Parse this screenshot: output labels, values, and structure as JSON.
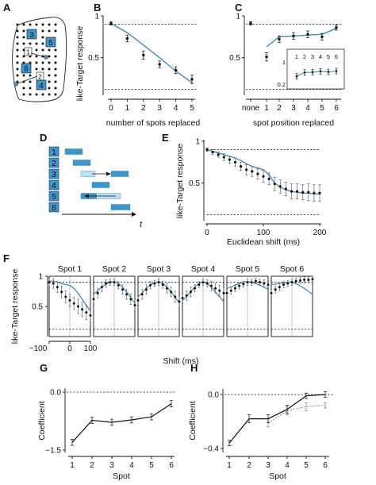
{
  "figure": {
    "panel_labels": [
      "A",
      "B",
      "C",
      "D",
      "E",
      "F",
      "G",
      "H"
    ]
  },
  "colors": {
    "model": "#3b8fc6",
    "data": "#111111",
    "box": "#3a97d0",
    "box_light": "#bfe0f3",
    "gray": "#888888"
  },
  "panelA": {
    "numbers": [
      "3",
      "5",
      "1",
      "6",
      "2",
      "4"
    ],
    "highlighted": [
      "3",
      "5",
      "6",
      "4"
    ]
  },
  "panelD": {
    "rows": [
      "1",
      "2",
      "3",
      "4",
      "5",
      "6"
    ],
    "t_label": "t"
  },
  "chart_data": [
    {
      "panel": "B",
      "type": "line",
      "x": [
        0,
        1,
        2,
        3,
        4,
        5
      ],
      "xticks": [
        "0",
        "1",
        "2",
        "3",
        "4",
        "5"
      ],
      "yticks": [
        "0.5",
        "1"
      ],
      "xlabel": "number of spots replaced",
      "ylabel": "like-Target response",
      "ylim": [
        0.05,
        1.0
      ],
      "reference_lines": [
        0.9,
        0.12
      ],
      "series": [
        {
          "values": [
            0.91,
            0.73,
            0.53,
            0.42,
            0.35,
            0.24
          ],
          "errors": [
            0.02,
            0.04,
            0.05,
            0.04,
            0.04,
            0.05
          ]
        }
      ],
      "model": [
        0.91,
        0.8,
        0.65,
        0.5,
        0.34,
        0.2
      ]
    },
    {
      "panel": "C",
      "type": "line",
      "categories": [
        "none",
        "1",
        "2",
        "3",
        "4",
        "5",
        "6"
      ],
      "xlabel": "spot position replaced",
      "yticks": [
        "0.5",
        "1"
      ],
      "ylim": [
        0.05,
        1.0
      ],
      "reference_lines": [
        0.9,
        0.12
      ],
      "series": [
        {
          "values": [
            0.91,
            0.51,
            0.72,
            0.76,
            0.78,
            0.75,
            0.86
          ],
          "errors": [
            0.02,
            0.05,
            0.04,
            0.04,
            0.04,
            0.04,
            0.03
          ]
        }
      ],
      "model": [
        null,
        0.63,
        0.75,
        0.76,
        0.77,
        0.78,
        0.85
      ],
      "inset": {
        "xticks": [
          "1",
          "2",
          "3",
          "4",
          "5",
          "6"
        ],
        "yticks": [
          "0.2",
          "1"
        ],
        "ylim": [
          0.2,
          1.0
        ],
        "values": [
          0.48,
          0.62,
          0.63,
          0.66,
          0.64,
          0.67
        ],
        "errors": [
          0.1,
          0.1,
          0.1,
          0.1,
          0.1,
          0.1
        ]
      }
    },
    {
      "panel": "E",
      "type": "line",
      "x": [
        0,
        10,
        20,
        30,
        40,
        50,
        60,
        70,
        80,
        90,
        100,
        110,
        120,
        130,
        140,
        150,
        160,
        170,
        180,
        190,
        200
      ],
      "xticks": [
        "0",
        "100",
        "200"
      ],
      "yticks": [
        "0.5",
        "1"
      ],
      "xlabel": "Euclidean shift (ms)",
      "ylabel": "like-Target response",
      "xlim": [
        0,
        200
      ],
      "ylim": [
        0.05,
        1.0
      ],
      "reference_lines": [
        0.9,
        0.12
      ],
      "series": [
        {
          "values": [
            0.9,
            0.87,
            0.84,
            0.81,
            0.78,
            0.75,
            0.7,
            0.66,
            0.64,
            0.61,
            0.58,
            0.55,
            0.49,
            0.46,
            0.43,
            0.4,
            0.4,
            0.39,
            0.39,
            0.38,
            0.38
          ],
          "errors": [
            0.02,
            0.03,
            0.03,
            0.04,
            0.04,
            0.05,
            0.05,
            0.06,
            0.06,
            0.06,
            0.07,
            0.07,
            0.08,
            0.08,
            0.08,
            0.09,
            0.09,
            0.09,
            0.1,
            0.1,
            0.1
          ]
        }
      ],
      "model": [
        0.9,
        0.88,
        0.86,
        0.84,
        0.82,
        0.8,
        0.77,
        0.73,
        0.7,
        0.68,
        0.66,
        0.6,
        0.5,
        0.45,
        0.42,
        0.4,
        0.39,
        0.38,
        0.38,
        0.37,
        0.37
      ]
    },
    {
      "panel": "F",
      "type": "line",
      "subplot_titles": [
        "Spot 1",
        "Spot 2",
        "Spot 3",
        "Spot 4",
        "Spot 5",
        "Spot 6"
      ],
      "x": [
        -100,
        -80,
        -60,
        -40,
        -20,
        0,
        20,
        40,
        60,
        80,
        100
      ],
      "xticks": [
        "−100",
        "0",
        "100"
      ],
      "yticks": [
        "0.5",
        "1"
      ],
      "xlabel": "Shift (ms)",
      "ylabel": "like-Target response",
      "xlim": [
        -100,
        100
      ],
      "ylim": [
        0.0,
        1.0
      ],
      "reference_lines": [
        0.9,
        0.12
      ],
      "series": [
        {
          "name": "Spot 1",
          "values": [
            0.9,
            0.88,
            0.82,
            0.74,
            0.66,
            0.6,
            0.55,
            0.5,
            0.45,
            0.4,
            0.35
          ],
          "errors": [
            0.08,
            0.08,
            0.09,
            0.1,
            0.1,
            0.1,
            0.1,
            0.12,
            0.12,
            0.12,
            0.12
          ]
        },
        {
          "name": "Spot 2",
          "values": [
            0.62,
            0.72,
            0.82,
            0.88,
            0.9,
            0.9,
            0.85,
            0.78,
            0.7,
            0.62,
            0.52
          ],
          "errors": [
            0.08,
            0.08,
            0.08,
            0.06,
            0.05,
            0.05,
            0.06,
            0.08,
            0.08,
            0.09,
            0.1
          ]
        },
        {
          "name": "Spot 3",
          "values": [
            0.6,
            0.7,
            0.78,
            0.85,
            0.88,
            0.9,
            0.86,
            0.8,
            0.74,
            0.66,
            0.58
          ],
          "errors": [
            0.08,
            0.08,
            0.08,
            0.06,
            0.05,
            0.05,
            0.06,
            0.08,
            0.08,
            0.09,
            0.1
          ]
        },
        {
          "name": "Spot 4",
          "values": [
            0.64,
            0.68,
            0.74,
            0.8,
            0.86,
            0.9,
            0.88,
            0.84,
            0.8,
            0.76,
            0.72
          ],
          "errors": [
            0.08,
            0.08,
            0.08,
            0.06,
            0.05,
            0.05,
            0.06,
            0.08,
            0.08,
            0.09,
            0.1
          ]
        },
        {
          "name": "Spot 5",
          "values": [
            0.72,
            0.76,
            0.8,
            0.84,
            0.87,
            0.9,
            0.9,
            0.92,
            0.9,
            0.88,
            0.86
          ],
          "errors": [
            0.06,
            0.06,
            0.06,
            0.05,
            0.05,
            0.05,
            0.05,
            0.05,
            0.05,
            0.06,
            0.06
          ]
        },
        {
          "name": "Spot 6",
          "values": [
            0.72,
            0.78,
            0.82,
            0.86,
            0.88,
            0.9,
            0.92,
            0.93,
            0.94,
            0.94,
            0.95
          ],
          "errors": [
            0.06,
            0.06,
            0.06,
            0.05,
            0.05,
            0.05,
            0.05,
            0.05,
            0.05,
            0.05,
            0.05
          ]
        }
      ],
      "models": [
        [
          0.92,
          0.92,
          0.9,
          0.88,
          0.86,
          0.85,
          0.8,
          0.72,
          0.62,
          0.52,
          0.42
        ],
        [
          0.7,
          0.76,
          0.82,
          0.87,
          0.9,
          0.91,
          0.88,
          0.82,
          0.74,
          0.65,
          0.55
        ],
        [
          0.66,
          0.72,
          0.8,
          0.86,
          0.89,
          0.91,
          0.88,
          0.82,
          0.74,
          0.65,
          0.56
        ],
        [
          0.6,
          0.66,
          0.74,
          0.82,
          0.88,
          0.91,
          0.88,
          0.82,
          0.74,
          0.66,
          0.58
        ],
        [
          0.8,
          0.82,
          0.85,
          0.88,
          0.9,
          0.91,
          0.9,
          0.88,
          0.85,
          0.82,
          0.78
        ],
        [
          0.86,
          0.87,
          0.88,
          0.89,
          0.9,
          0.91,
          0.88,
          0.84,
          0.8,
          0.75,
          0.7
        ]
      ]
    },
    {
      "panel": "G",
      "type": "line",
      "categories": [
        "1",
        "2",
        "3",
        "4",
        "5",
        "6"
      ],
      "xlabel": "Spot",
      "ylabel": "Coefficient",
      "yticks": [
        "0.0",
        "−1.5"
      ],
      "ylim": [
        -1.5,
        0.1
      ],
      "reference_lines": [
        0.0
      ],
      "series": [
        {
          "values": [
            -1.3,
            -0.73,
            -0.78,
            -0.72,
            -0.64,
            -0.3
          ],
          "errors": [
            0.08,
            0.08,
            0.08,
            0.08,
            0.08,
            0.08
          ]
        }
      ]
    },
    {
      "panel": "H",
      "type": "line",
      "categories": [
        "1",
        "2",
        "3",
        "4",
        "5",
        "6"
      ],
      "xlabel": "Spot",
      "ylabel": "Coefficient",
      "yticks": [
        "0.0",
        "−0.4"
      ],
      "ylim": [
        -0.4,
        0.02
      ],
      "reference_lines": [
        0.0
      ],
      "series": [
        {
          "values": [
            -0.36,
            -0.18,
            -0.18,
            -0.11,
            -0.01,
            0.0
          ],
          "errors": [
            0.02,
            0.03,
            0.03,
            0.03,
            0.02,
            0.02
          ]
        },
        {
          "values": [
            null,
            null,
            -0.21,
            -0.12,
            -0.09,
            -0.08
          ],
          "errors": [
            0.0,
            0.0,
            0.03,
            0.03,
            0.03,
            0.02
          ]
        }
      ]
    }
  ]
}
